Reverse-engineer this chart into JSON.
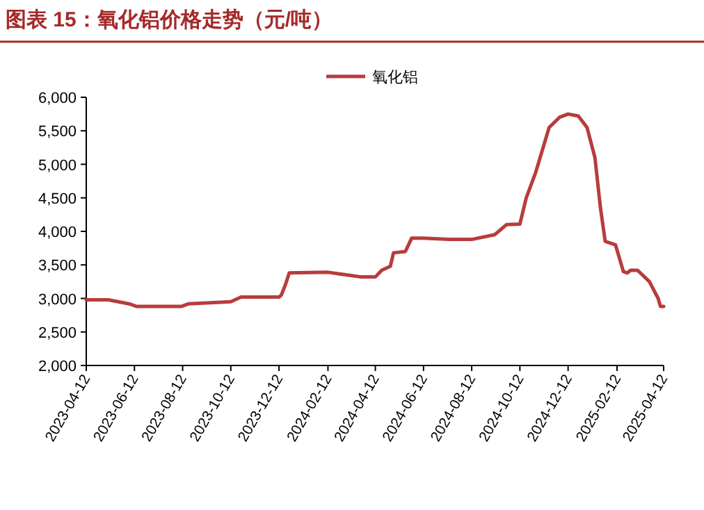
{
  "chart_data": {
    "type": "line",
    "title": "图表 15：氧化铝价格走势（元/吨）",
    "x": [
      "2023-04-12",
      "2023-05-10",
      "2023-06-05",
      "2023-06-15",
      "2023-08-10",
      "2023-08-20",
      "2023-10-12",
      "2023-10-25",
      "2023-12-12",
      "2023-12-15",
      "2023-12-20",
      "2023-12-25",
      "2024-02-12",
      "2024-03-01",
      "2024-03-25",
      "2024-04-12",
      "2024-04-20",
      "2024-05-01",
      "2024-05-05",
      "2024-05-20",
      "2024-05-28",
      "2024-06-12",
      "2024-07-15",
      "2024-08-12",
      "2024-09-10",
      "2024-09-25",
      "2024-10-12",
      "2024-10-20",
      "2024-11-01",
      "2024-11-18",
      "2024-12-01",
      "2024-12-12",
      "2024-12-25",
      "2025-01-05",
      "2025-01-15",
      "2025-01-22",
      "2025-01-28",
      "2025-02-10",
      "2025-02-20",
      "2025-02-25",
      "2025-03-01",
      "2025-03-10",
      "2025-03-25",
      "2025-04-05",
      "2025-04-08",
      "2025-04-12"
    ],
    "series": [
      {
        "name": "氧化铝",
        "color": "#b83c3c",
        "values": [
          2980,
          2980,
          2920,
          2880,
          2880,
          2920,
          2950,
          3020,
          3020,
          3050,
          3200,
          3380,
          3390,
          3360,
          3320,
          3320,
          3420,
          3480,
          3680,
          3700,
          3900,
          3900,
          3880,
          3880,
          3950,
          4100,
          4110,
          4500,
          4880,
          5550,
          5700,
          5750,
          5720,
          5550,
          5100,
          4350,
          3850,
          3800,
          3400,
          3380,
          3420,
          3420,
          3250,
          3000,
          2880,
          2880
        ]
      }
    ],
    "xlim": [
      "2023-04-12",
      "2025-04-12"
    ],
    "xticks": [
      "2023-04-12",
      "2023-06-12",
      "2023-08-12",
      "2023-10-12",
      "2023-12-12",
      "2024-02-12",
      "2024-04-12",
      "2024-06-12",
      "2024-08-12",
      "2024-10-12",
      "2024-12-12",
      "2025-02-12",
      "2025-04-12"
    ],
    "ylim": [
      2000,
      6000
    ],
    "yticks": [
      {
        "value": 2000,
        "label": "2,000"
      },
      {
        "value": 2500,
        "label": "2,500"
      },
      {
        "value": 3000,
        "label": "3,000"
      },
      {
        "value": 3500,
        "label": "3,500"
      },
      {
        "value": 4000,
        "label": "4,000"
      },
      {
        "value": 4500,
        "label": "4,500"
      },
      {
        "value": 5000,
        "label": "5,000"
      },
      {
        "value": 5500,
        "label": "5,500"
      },
      {
        "value": 6000,
        "label": "6,000"
      }
    ],
    "legend": "top"
  }
}
